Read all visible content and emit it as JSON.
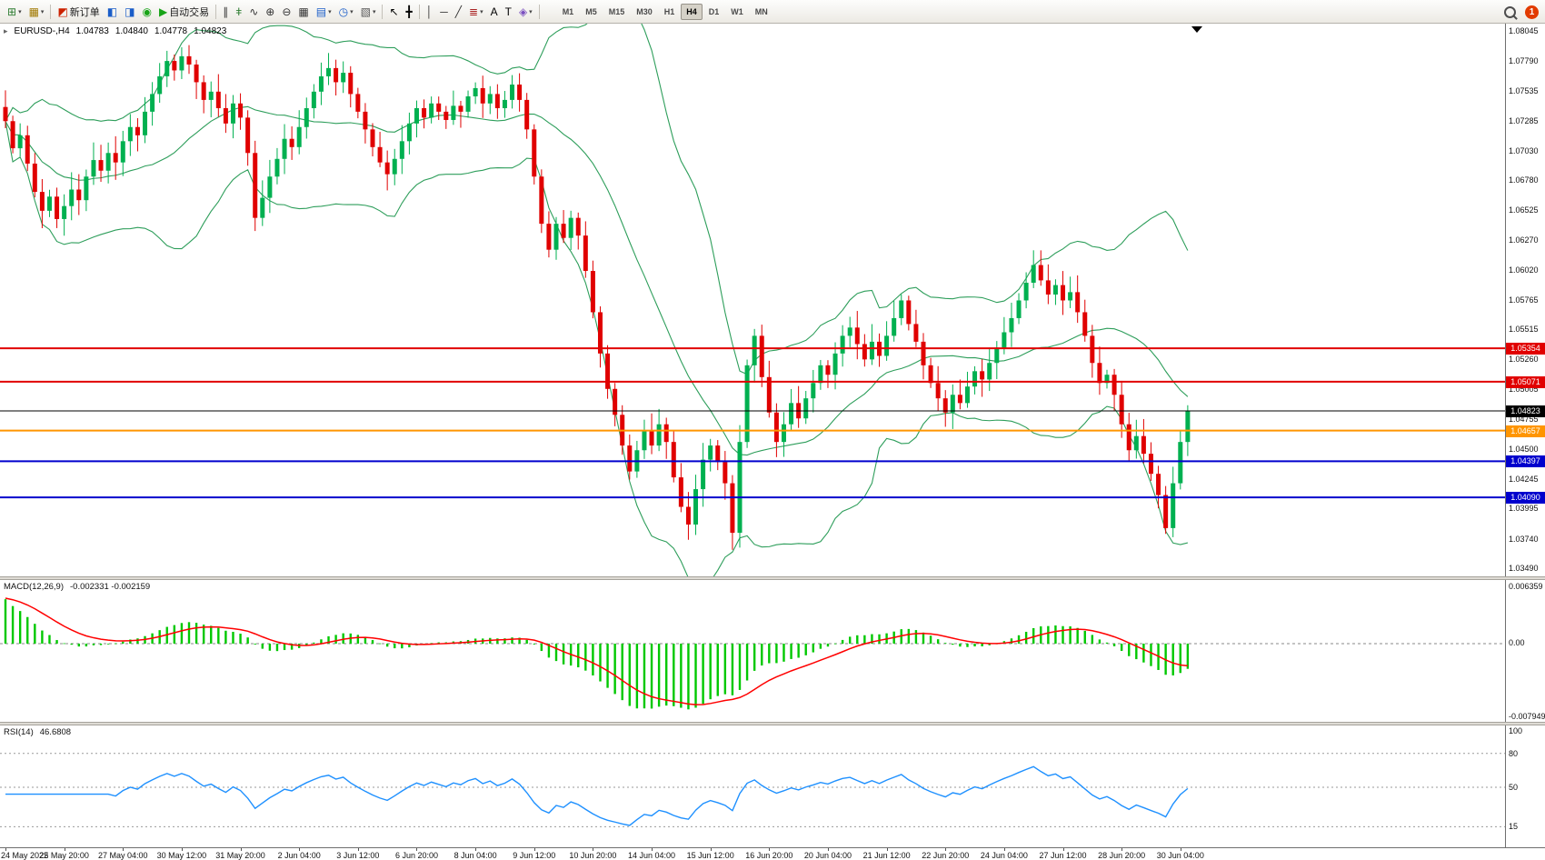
{
  "toolbar": {
    "buttons": [
      {
        "name": "new-chart-button",
        "icon": "new-chart-icon",
        "glyph": "⊞",
        "color": "#2e7d32",
        "caret": true
      },
      {
        "name": "profiles-button",
        "icon": "profiles-icon",
        "glyph": "▦",
        "color": "#a07800",
        "caret": true
      },
      {
        "sep": true
      },
      {
        "name": "new-order-button",
        "icon": "new-order-icon",
        "glyph": "◩",
        "color": "#cc2200",
        "label": "新订单"
      },
      {
        "name": "market-watch-button",
        "icon": "market-watch-icon",
        "glyph": "◧",
        "color": "#1a5dc8"
      },
      {
        "name": "data-window-button",
        "icon": "data-window-icon",
        "glyph": "◨",
        "color": "#1a5dc8"
      },
      {
        "name": "navigator-button",
        "icon": "navigator-icon",
        "glyph": "◉",
        "color": "#17a317"
      },
      {
        "name": "autotrading-button",
        "icon": "autotrading-icon",
        "glyph": "▶",
        "color": "#17a317",
        "label": "自动交易"
      },
      {
        "sep": true
      },
      {
        "name": "bar-chart-button",
        "icon": "bar-chart-icon",
        "glyph": "∥",
        "color": "#333333"
      },
      {
        "name": "candlestick-button",
        "icon": "candlestick-icon",
        "glyph": "ǂ",
        "color": "#2e7d32"
      },
      {
        "name": "line-chart-button",
        "icon": "line-chart-icon",
        "glyph": "∿",
        "color": "#333333"
      },
      {
        "name": "zoom-in-button",
        "icon": "zoom-in-icon",
        "glyph": "⊕",
        "color": "#333333"
      },
      {
        "name": "zoom-out-button",
        "icon": "zoom-out-icon",
        "glyph": "⊖",
        "color": "#333333"
      },
      {
        "name": "tile-windows-button",
        "icon": "tile-windows-icon",
        "glyph": "▦",
        "color": "#333333"
      },
      {
        "name": "auto-arrange-button",
        "icon": "auto-arrange-icon",
        "glyph": "▤",
        "color": "#1a5dc8",
        "caret": true
      },
      {
        "name": "period-button",
        "icon": "clock-icon",
        "glyph": "◷",
        "color": "#1a5dc8",
        "caret": true
      },
      {
        "name": "template-button",
        "icon": "template-icon",
        "glyph": "▧",
        "color": "#555555",
        "caret": true
      },
      {
        "sep": true
      },
      {
        "name": "cursor-button",
        "icon": "cursor-icon",
        "glyph": "↖",
        "color": "#000000"
      },
      {
        "name": "crosshair-button",
        "icon": "crosshair-icon",
        "glyph": "╋",
        "color": "#000000"
      },
      {
        "sep": true
      },
      {
        "name": "vertical-line-button",
        "icon": "vertical-line-icon",
        "glyph": "│",
        "color": "#333333"
      },
      {
        "name": "horizontal-line-button",
        "icon": "horizontal-line-icon",
        "glyph": "─",
        "color": "#333333"
      },
      {
        "name": "trendline-button",
        "icon": "trendline-icon",
        "glyph": "╱",
        "color": "#333333"
      },
      {
        "name": "fibonacci-button",
        "icon": "fibonacci-icon",
        "glyph": "≣",
        "color": "#aa2222",
        "caret": true
      },
      {
        "name": "text-button",
        "icon": "text-icon",
        "glyph": "A",
        "color": "#000000"
      },
      {
        "name": "label-button",
        "icon": "label-icon",
        "glyph": "T",
        "color": "#000000"
      },
      {
        "name": "shapes-button",
        "icon": "shapes-icon",
        "glyph": "◈",
        "color": "#7a4fc0",
        "caret": true
      },
      {
        "sep": true
      }
    ],
    "timeframes": {
      "items": [
        "M1",
        "M5",
        "M15",
        "M30",
        "H1",
        "H4",
        "D1",
        "W1",
        "MN"
      ],
      "active": "H4"
    },
    "notification_count": "1"
  },
  "chart": {
    "one_click_glyph": "▸",
    "quote": {
      "symbol": "EURUSD-,H4",
      "open": "1.04783",
      "high": "1.04840",
      "low": "1.04778",
      "close": "1.04823"
    },
    "price_ticks": [
      "1.08045",
      "1.07790",
      "1.07535",
      "1.07285",
      "1.07030",
      "1.06780",
      "1.06525",
      "1.06270",
      "1.06020",
      "1.05765",
      "1.05515",
      "1.05260",
      "1.05005",
      "1.04755",
      "1.04500",
      "1.04245",
      "1.03995",
      "1.03740",
      "1.03490"
    ],
    "levels": [
      {
        "price": 1.05354,
        "label": "1.05354",
        "color": "#e10000",
        "width": 2,
        "type": "resistance-line"
      },
      {
        "price": 1.05071,
        "label": "1.05071",
        "color": "#e10000",
        "width": 2,
        "type": "resistance-line"
      },
      {
        "price": 1.04823,
        "label": "1.04823",
        "color": "#000000",
        "width": 1,
        "type": "current-price-line"
      },
      {
        "price": 1.04657,
        "label": "1.04657",
        "color": "#ff9500",
        "width": 2,
        "type": "pivot-line"
      },
      {
        "price": 1.04397,
        "label": "1.04397",
        "color": "#0000cd",
        "width": 2,
        "type": "support-line"
      },
      {
        "price": 1.0409,
        "label": "1.04090",
        "color": "#0000cd",
        "width": 2,
        "type": "support-line"
      }
    ],
    "time_labels": [
      "24 May 2022",
      "25 May 20:00",
      "27 May 04:00",
      "30 May 12:00",
      "31 May 20:00",
      "2 Jun 04:00",
      "3 Jun 12:00",
      "6 Jun 20:00",
      "8 Jun 04:00",
      "9 Jun 12:00",
      "10 Jun 20:00",
      "14 Jun 04:00",
      "15 Jun 12:00",
      "16 Jun 20:00",
      "20 Jun 04:00",
      "21 Jun 12:00",
      "22 Jun 20:00",
      "24 Jun 04:00",
      "27 Jun 12:00",
      "28 Jun 20:00",
      "30 Jun 04:00"
    ]
  },
  "macd_panel": {
    "label": "MACD(12,26,9)",
    "values": "-0.002331 -0.002159",
    "axis_top": "0.006359",
    "axis_zero": "0.00",
    "axis_bottom": "-0.007949"
  },
  "rsi_panel": {
    "label": "RSI(14)",
    "value": "46.6808",
    "axis": [
      "100",
      "80",
      "50",
      "15"
    ],
    "levels": [
      80,
      50,
      15
    ]
  },
  "chart_data": {
    "type": "candlestick",
    "symbol": "EURUSD-",
    "timeframe": "H4",
    "title": "EURUSD-,H4 1.04783 1.04840 1.04778 1.04823",
    "y_range": [
      1.0349,
      1.08045
    ],
    "up_color": "#00b050",
    "down_color": "#e00000",
    "band_color": "#2e9e5b",
    "macd_hist_color": "#00c800",
    "macd_signal_color": "#ff0000",
    "rsi_color": "#1e90ff",
    "indicators": {
      "bollinger_period": 20,
      "bollinger_dev": 2,
      "macd": [
        12,
        26,
        9
      ],
      "rsi_period": 14,
      "rsi_value": 46.6808,
      "macd_main": -0.002331,
      "macd_signal_value": -0.002159
    },
    "macd_range": [
      -0.007949,
      0.006359
    ],
    "closes": [
      1.0728,
      1.0705,
      1.0716,
      1.0692,
      1.0668,
      1.0652,
      1.0664,
      1.0645,
      1.0656,
      1.067,
      1.0661,
      1.0681,
      1.0695,
      1.0686,
      1.0701,
      1.0693,
      1.0711,
      1.0723,
      1.0716,
      1.0736,
      1.0751,
      1.0766,
      1.0779,
      1.0771,
      1.0783,
      1.0776,
      1.0761,
      1.0746,
      1.0753,
      1.0739,
      1.0726,
      1.0743,
      1.0731,
      1.0701,
      1.0646,
      1.0663,
      1.0681,
      1.0696,
      1.0713,
      1.0706,
      1.0723,
      1.0739,
      1.0753,
      1.0766,
      1.0773,
      1.0761,
      1.0769,
      1.0751,
      1.0736,
      1.0721,
      1.0706,
      1.0693,
      1.0683,
      1.0696,
      1.0711,
      1.0726,
      1.0739,
      1.0731,
      1.0743,
      1.0736,
      1.0729,
      1.0741,
      1.0736,
      1.0749,
      1.0756,
      1.0743,
      1.0751,
      1.0739,
      1.0746,
      1.0759,
      1.0746,
      1.0721,
      1.0681,
      1.0641,
      1.0619,
      1.0641,
      1.0629,
      1.0646,
      1.0631,
      1.0601,
      1.0566,
      1.0531,
      1.0501,
      1.0479,
      1.0453,
      1.0431,
      1.0449,
      1.0466,
      1.0453,
      1.0471,
      1.0456,
      1.0426,
      1.0401,
      1.0386,
      1.0416,
      1.0441,
      1.0453,
      1.0439,
      1.0421,
      1.0379,
      1.0456,
      1.0521,
      1.0546,
      1.0511,
      1.0481,
      1.0456,
      1.0471,
      1.0489,
      1.0476,
      1.0493,
      1.0506,
      1.0521,
      1.0513,
      1.0531,
      1.0546,
      1.0553,
      1.0539,
      1.0526,
      1.0541,
      1.0529,
      1.0546,
      1.0561,
      1.0576,
      1.0556,
      1.0541,
      1.0521,
      1.0506,
      1.0493,
      1.0481,
      1.0496,
      1.0489,
      1.0503,
      1.0516,
      1.0509,
      1.0523,
      1.0536,
      1.0549,
      1.0561,
      1.0576,
      1.0591,
      1.0606,
      1.0593,
      1.0581,
      1.0589,
      1.0576,
      1.0583,
      1.0566,
      1.0546,
      1.0523,
      1.0506,
      1.0513,
      1.0496,
      1.0471,
      1.0449,
      1.0461,
      1.0446,
      1.0429,
      1.0411,
      1.0383,
      1.0421,
      1.0456,
      1.04823
    ]
  }
}
